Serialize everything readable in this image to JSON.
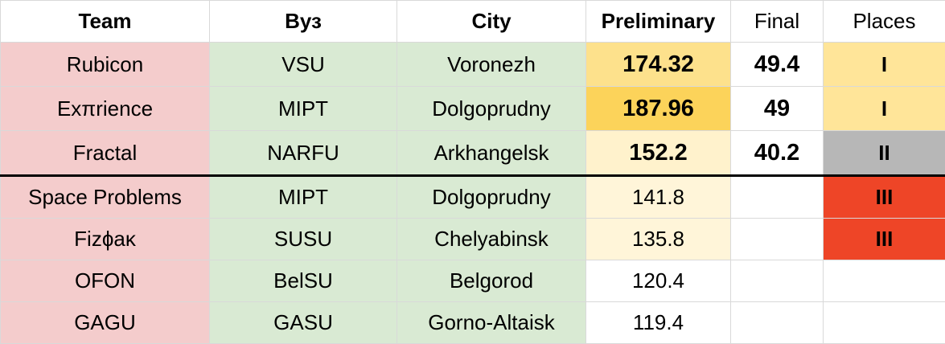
{
  "table": {
    "header": [
      "Team",
      "Вуз",
      "City",
      "Preliminary",
      "Final",
      "Places"
    ],
    "rows": [
      [
        "Rubicon",
        "VSU",
        "Voronezh",
        "174.32",
        "49.4",
        "I"
      ],
      [
        "Exπrience",
        "MIPT",
        "Dolgoprudny",
        "187.96",
        "49",
        "I"
      ],
      [
        "Fractal",
        "NARFU",
        "Arkhangelsk",
        "152.2",
        "40.2",
        "II"
      ],
      [
        "Space Problems",
        "MIPT",
        "Dolgoprudny",
        "141.8",
        null,
        "III"
      ],
      [
        "Fizϕaκ",
        "SUSU",
        "Chelyabinsk",
        "135.8",
        null,
        "III"
      ],
      [
        "OFON",
        "BelSU",
        "Belgorod",
        "120.4",
        null,
        null
      ],
      [
        "GAGU",
        "GASU",
        "Gorno-Altaisk",
        "119.4",
        null,
        null
      ]
    ]
  }
}
